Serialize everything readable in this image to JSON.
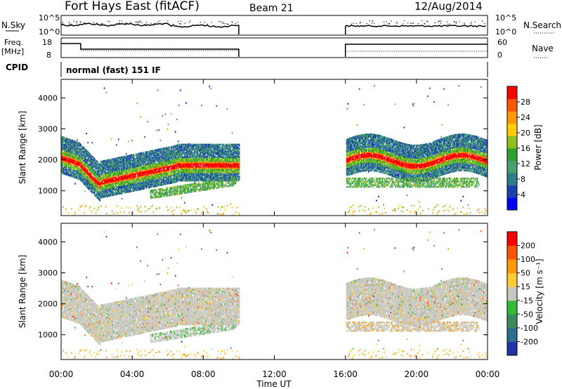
{
  "header": {
    "station": "Fort Hays East (fitACF)",
    "beam": "Beam 21",
    "date": "12/Aug/2014"
  },
  "panels": {
    "nsky": {
      "label": "N.Sky",
      "ticks": [
        "10^5",
        "10^0"
      ],
      "right_label": "N.Search",
      "right_ticks": [
        "10^5",
        "10^0"
      ]
    },
    "freq": {
      "label_line1": "Freq.",
      "label_line2": "[MHz]",
      "ticks": [
        "18",
        "8"
      ],
      "right_label": "Nave",
      "right_ticks": [
        "60",
        "0"
      ]
    },
    "cpid": {
      "label": "CPID",
      "text": "normal (fast) 151 IF"
    }
  },
  "chart_data": [
    {
      "type": "heatmap",
      "name": "power",
      "ylabel": "Slant Range [km]",
      "xlabel": "Time UT",
      "ylim": [
        200,
        4600
      ],
      "yticks": [
        "4000",
        "3000",
        "2000",
        "1000"
      ],
      "xticks": [
        "00:00",
        "04:00",
        "08:00",
        "12:00",
        "16:00",
        "20:00",
        "00:00"
      ],
      "colorbar": {
        "label": "Power [dB]",
        "ticks": [
          "28",
          "24",
          "20",
          "16",
          "12",
          "8",
          "4"
        ],
        "colors": [
          "#0000ff",
          "#1a3fae",
          "#2e7d8a",
          "#4aa070",
          "#2ea02e",
          "#90c020",
          "#ffcc00",
          "#ff9900",
          "#ff5500",
          "#ff0000"
        ]
      },
      "regions": [
        {
          "start_h": 0.0,
          "end_h": 10.0,
          "value": "echoes"
        },
        {
          "start_h": 16.0,
          "end_h": 24.0,
          "value": "echoes"
        }
      ]
    },
    {
      "type": "heatmap",
      "name": "velocity",
      "ylabel": "Slant Range [km]",
      "xlabel": "Time UT",
      "ylim": [
        200,
        4600
      ],
      "yticks": [
        "4000",
        "3000",
        "2000",
        "1000"
      ],
      "xticks": [
        "00:00",
        "04:00",
        "08:00",
        "12:00",
        "16:00",
        "20:00",
        "00:00"
      ],
      "colorbar": {
        "label": "Velocity [m s⁻¹]",
        "ticks": [
          "200",
          "100",
          "50",
          "15",
          "-15",
          "-50",
          "-100",
          "-200"
        ],
        "colors": [
          "#2233aa",
          "#2e6e8e",
          "#3a8a5a",
          "#33bb33",
          "#c8c8c0",
          "#ffcc33",
          "#ff9900",
          "#ff5500",
          "#ff0000"
        ]
      }
    }
  ]
}
